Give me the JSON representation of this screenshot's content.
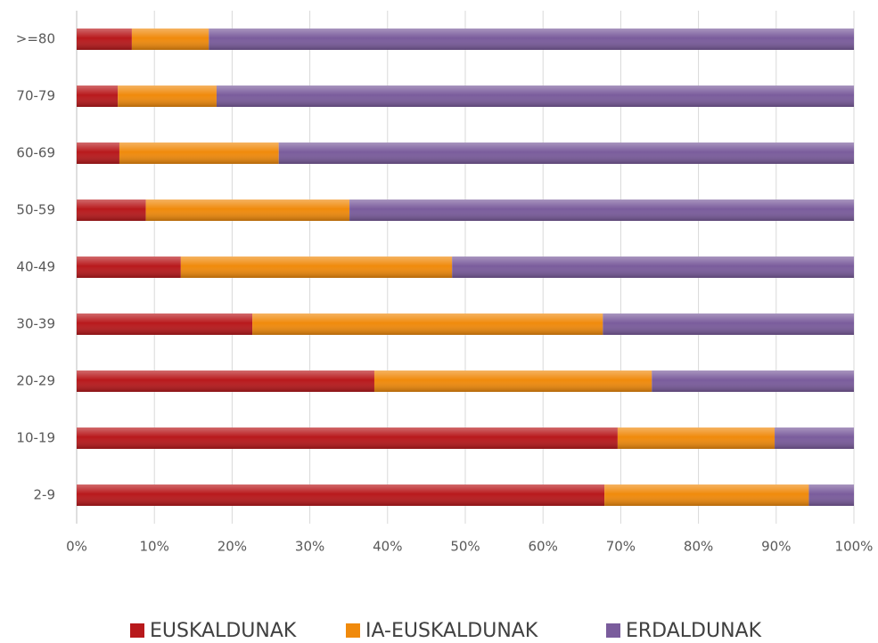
{
  "chart_data": {
    "type": "stacked_barh",
    "categories": [
      "2-9",
      "10-19",
      "20-29",
      "30-39",
      "40-49",
      "50-59",
      "60-69",
      "70-79",
      ">=80"
    ],
    "series": [
      {
        "name": "EUSKALDUNAK",
        "color": "#b8191c",
        "values": [
          67.9,
          69.6,
          38.3,
          22.6,
          13.4,
          8.9,
          5.5,
          5.3,
          7.1
        ]
      },
      {
        "name": "IA-EUSKALDUNAK",
        "color": "#f08a0c",
        "values": [
          26.3,
          20.2,
          35.7,
          45.1,
          34.9,
          26.2,
          20.5,
          12.7,
          9.9
        ]
      },
      {
        "name": "ERDALDUNAK",
        "color": "#7a5c9c",
        "values": [
          5.8,
          10.2,
          26.0,
          32.3,
          51.7,
          64.9,
          74.0,
          82.0,
          83.0
        ]
      }
    ],
    "xlim": [
      0,
      100
    ],
    "xticks": [
      {
        "value": 0,
        "label": "0%"
      },
      {
        "value": 10,
        "label": "10%"
      },
      {
        "value": 20,
        "label": "20%"
      },
      {
        "value": 30,
        "label": "30%"
      },
      {
        "value": 40,
        "label": "40%"
      },
      {
        "value": 50,
        "label": "50%"
      },
      {
        "value": 60,
        "label": "60%"
      },
      {
        "value": 70,
        "label": "70%"
      },
      {
        "value": 80,
        "label": "80%"
      },
      {
        "value": 90,
        "label": "90%"
      },
      {
        "value": 100,
        "label": "100%"
      }
    ],
    "grid": true,
    "legend": "bottom"
  }
}
